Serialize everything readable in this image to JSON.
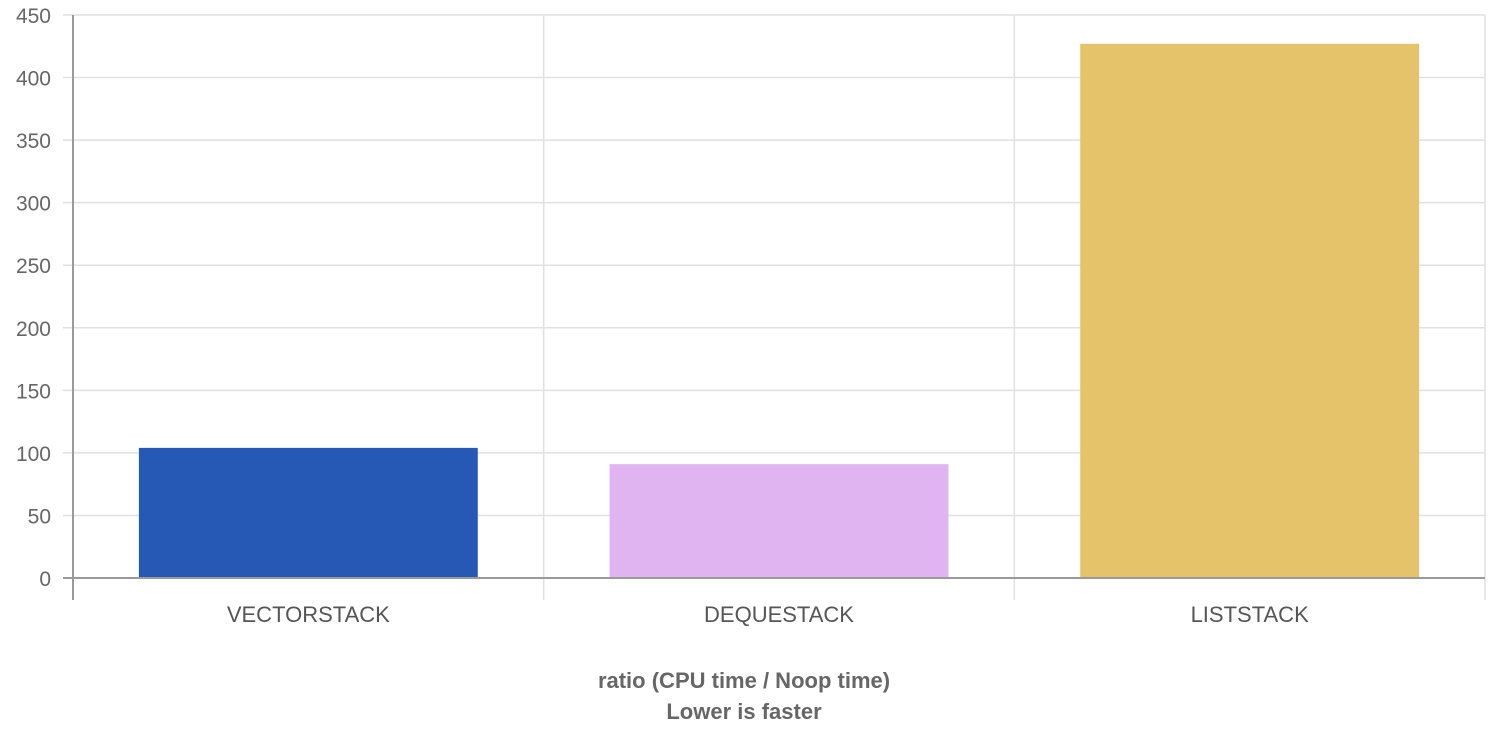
{
  "chart_data": {
    "type": "bar",
    "categories": [
      "VECTORSTACK",
      "DEQUESTACK",
      "LISTSTACK"
    ],
    "values": [
      104,
      91,
      427
    ],
    "colors": [
      "#2559b5",
      "#e0b4f0",
      "#e4c36a"
    ],
    "title": "",
    "xlabel_lines": [
      "ratio (CPU time / Noop time)",
      "Lower is faster"
    ],
    "ylabel": "",
    "ylim": [
      0,
      450
    ],
    "yticks": [
      "0",
      "50",
      "100",
      "150",
      "200",
      "250",
      "300",
      "350",
      "400",
      "450"
    ],
    "grid": true,
    "legend": "none"
  }
}
